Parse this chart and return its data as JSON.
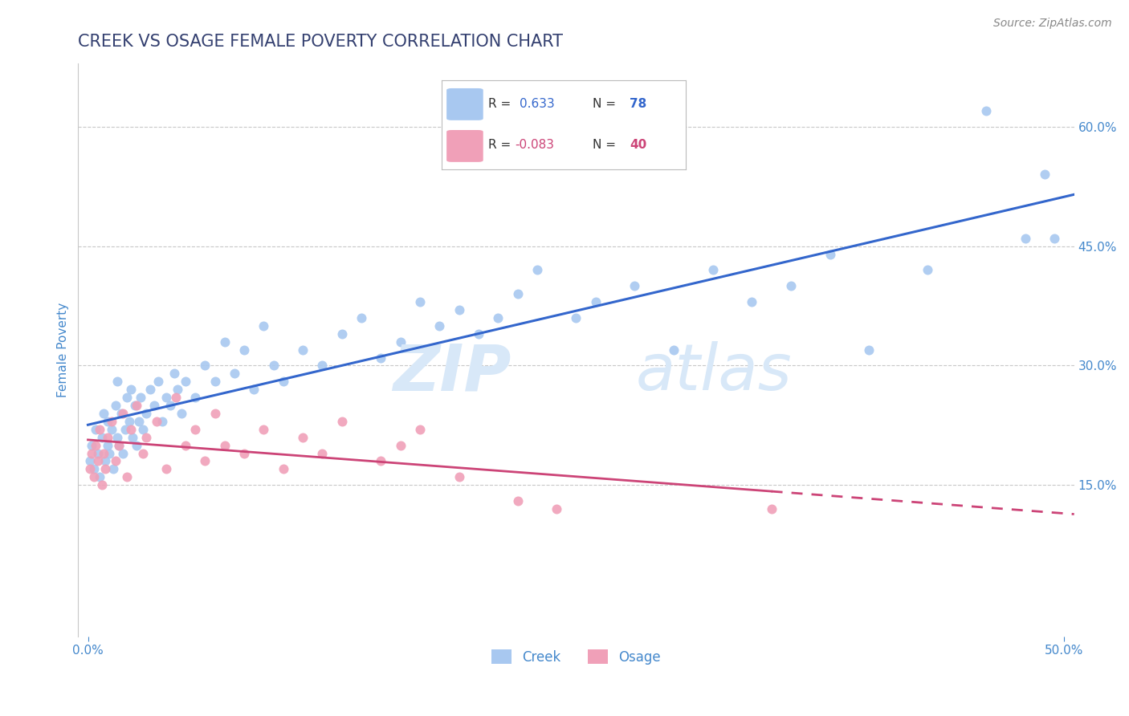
{
  "title": "CREEK VS OSAGE FEMALE POVERTY CORRELATION CHART",
  "source_text": "Source: ZipAtlas.com",
  "ylabel": "Female Poverty",
  "xlim": [
    -0.005,
    0.505
  ],
  "ylim": [
    -0.04,
    0.68
  ],
  "xticks": [
    0.0,
    0.5
  ],
  "xtick_labels": [
    "0.0%",
    "50.0%"
  ],
  "yticks_right": [
    0.15,
    0.3,
    0.45,
    0.6
  ],
  "ytick_labels_right": [
    "15.0%",
    "30.0%",
    "45.0%",
    "60.0%"
  ],
  "grid_color": "#c8c8c8",
  "background_color": "#ffffff",
  "creek_color": "#a8c8f0",
  "creek_line_color": "#3366cc",
  "osage_color": "#f0a0b8",
  "osage_line_color": "#cc4477",
  "watermark_color": "#d8e8f8",
  "legend_creek_R": "0.633",
  "legend_creek_N": "78",
  "legend_osage_R": "-0.083",
  "legend_osage_N": "40",
  "creek_label": "Creek",
  "osage_label": "Osage",
  "creek_x": [
    0.001,
    0.002,
    0.003,
    0.004,
    0.005,
    0.006,
    0.007,
    0.008,
    0.009,
    0.01,
    0.01,
    0.011,
    0.012,
    0.013,
    0.014,
    0.015,
    0.015,
    0.016,
    0.017,
    0.018,
    0.019,
    0.02,
    0.021,
    0.022,
    0.023,
    0.024,
    0.025,
    0.026,
    0.027,
    0.028,
    0.03,
    0.032,
    0.034,
    0.036,
    0.038,
    0.04,
    0.042,
    0.044,
    0.046,
    0.048,
    0.05,
    0.055,
    0.06,
    0.065,
    0.07,
    0.075,
    0.08,
    0.085,
    0.09,
    0.095,
    0.1,
    0.11,
    0.12,
    0.13,
    0.14,
    0.15,
    0.16,
    0.17,
    0.18,
    0.19,
    0.2,
    0.21,
    0.22,
    0.23,
    0.25,
    0.26,
    0.28,
    0.3,
    0.32,
    0.34,
    0.36,
    0.38,
    0.4,
    0.43,
    0.46,
    0.48,
    0.49,
    0.495
  ],
  "creek_y": [
    0.18,
    0.2,
    0.17,
    0.22,
    0.19,
    0.16,
    0.21,
    0.24,
    0.18,
    0.2,
    0.23,
    0.19,
    0.22,
    0.17,
    0.25,
    0.21,
    0.28,
    0.2,
    0.24,
    0.19,
    0.22,
    0.26,
    0.23,
    0.27,
    0.21,
    0.25,
    0.2,
    0.23,
    0.26,
    0.22,
    0.24,
    0.27,
    0.25,
    0.28,
    0.23,
    0.26,
    0.25,
    0.29,
    0.27,
    0.24,
    0.28,
    0.26,
    0.3,
    0.28,
    0.33,
    0.29,
    0.32,
    0.27,
    0.35,
    0.3,
    0.28,
    0.32,
    0.3,
    0.34,
    0.36,
    0.31,
    0.33,
    0.38,
    0.35,
    0.37,
    0.34,
    0.36,
    0.39,
    0.42,
    0.36,
    0.38,
    0.4,
    0.32,
    0.42,
    0.38,
    0.4,
    0.44,
    0.32,
    0.42,
    0.62,
    0.46,
    0.54,
    0.46
  ],
  "osage_x": [
    0.001,
    0.002,
    0.003,
    0.004,
    0.005,
    0.006,
    0.007,
    0.008,
    0.009,
    0.01,
    0.012,
    0.014,
    0.016,
    0.018,
    0.02,
    0.022,
    0.025,
    0.028,
    0.03,
    0.035,
    0.04,
    0.045,
    0.05,
    0.055,
    0.06,
    0.065,
    0.07,
    0.08,
    0.09,
    0.1,
    0.11,
    0.12,
    0.13,
    0.15,
    0.16,
    0.17,
    0.19,
    0.22,
    0.24,
    0.35
  ],
  "osage_y": [
    0.17,
    0.19,
    0.16,
    0.2,
    0.18,
    0.22,
    0.15,
    0.19,
    0.17,
    0.21,
    0.23,
    0.18,
    0.2,
    0.24,
    0.16,
    0.22,
    0.25,
    0.19,
    0.21,
    0.23,
    0.17,
    0.26,
    0.2,
    0.22,
    0.18,
    0.24,
    0.2,
    0.19,
    0.22,
    0.17,
    0.21,
    0.19,
    0.23,
    0.18,
    0.2,
    0.22,
    0.16,
    0.13,
    0.12,
    0.12
  ],
  "title_color": "#344070",
  "axis_color": "#4488cc",
  "tick_color": "#4488cc",
  "ylabel_color": "#4488cc",
  "title_fontsize": 15,
  "label_fontsize": 11,
  "tick_fontsize": 11,
  "source_fontsize": 10
}
